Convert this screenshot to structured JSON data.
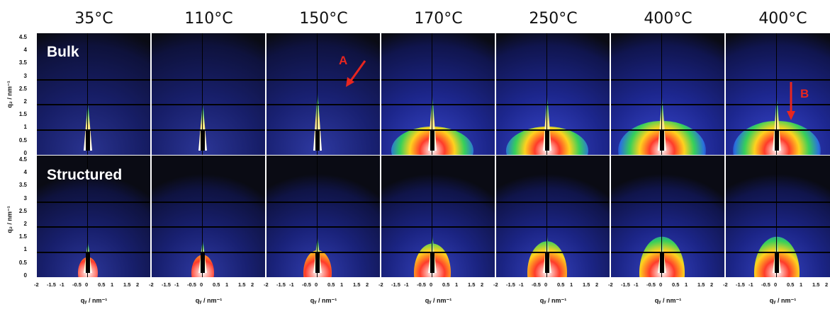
{
  "temperatures": [
    "35°C",
    "110°C",
    "150°C",
    "170°C",
    "250°C",
    "400°C",
    "400°C"
  ],
  "rows": [
    {
      "sample": "Bulk",
      "ylabel": "q₂ / nm⁻¹"
    },
    {
      "sample": "Structured",
      "ylabel": "q₂ / nm⁻¹"
    }
  ],
  "y_ticks": [
    "4.5",
    "4",
    "3.5",
    "3",
    "2.5",
    "2",
    "1.5",
    "1",
    "0.5",
    "0"
  ],
  "x_ticks": [
    "-2",
    "-1.5",
    "-1",
    "-0.5",
    "0",
    "0.5",
    "1",
    "1.5",
    "2"
  ],
  "xlabel": "qᵧ / nm⁻¹",
  "annotations": {
    "A": "A",
    "B": "B"
  },
  "colors": {
    "arrow": "#e8261f",
    "background": "#0a0b14",
    "scatter_low": "#1a1f7a"
  }
}
